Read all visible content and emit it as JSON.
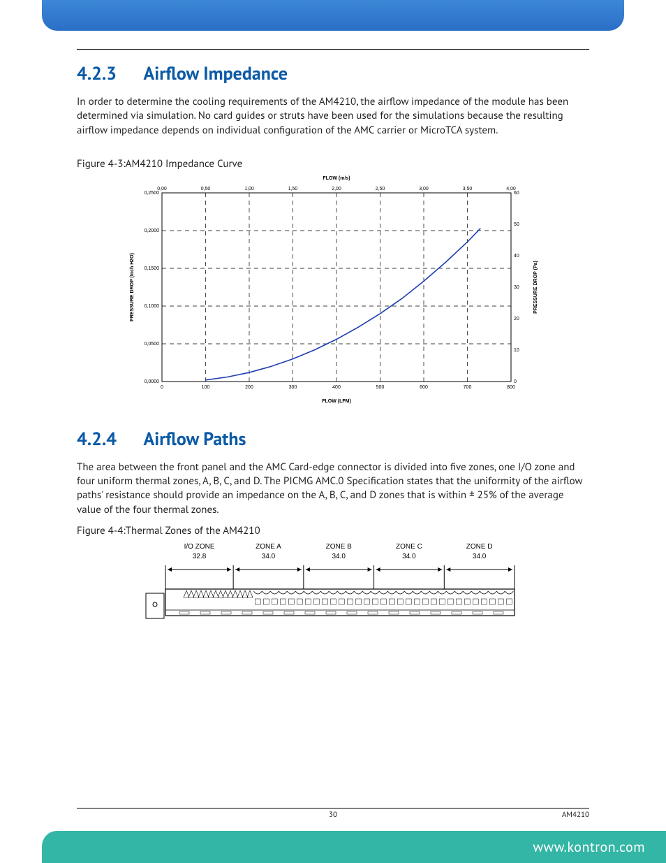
{
  "page": {
    "number": "30",
    "doc_id": "AM4210",
    "footer_url": "www.kontron.com"
  },
  "colors": {
    "topbar_from": "#3d87d6",
    "topbar_to": "#2a6fc7",
    "botbar": "#33b6a6",
    "heading": "#0b5aa6",
    "curve": "#1e3fb0",
    "grid": "#000000"
  },
  "sec1": {
    "num": "4.2.3",
    "title": "Airflow Impedance",
    "para": "In order to determine the cooling requirements of the AM4210, the airflow impedance of the module has been determined via simulation. No card guides or struts have been used for the simulations because the resulting airflow impedance depends on individual configuration of the AMC carrier or MicroTCA system."
  },
  "sec2": {
    "num": "4.2.4",
    "title": "Airflow Paths",
    "para": "The area between the front panel and the AMC Card-edge connector is divided into five zones, one I/O zone and four uniform thermal zones, A, B, C, and D. The PICMG AMC.0 Specification states that the uniformity of the airflow paths' resistance should provide an impedance on the A, B, C, and D zones that is within ± 25% of the average value of the four thermal zones."
  },
  "fig1": {
    "caption": "Figure 4-3:AM4210 Impedance Curve",
    "type": "line",
    "x_bottom": {
      "label": "FLOW (LFM)",
      "min": 0,
      "max": 800,
      "tick_step": 100,
      "ticks": [
        "0",
        "100",
        "200",
        "300",
        "400",
        "500",
        "600",
        "700",
        "800"
      ]
    },
    "x_top": {
      "label": "FLOW (m/s)",
      "min": 0,
      "max": 4,
      "ticks": [
        "0,00",
        "0,50",
        "1,00",
        "1,50",
        "2,00",
        "2,50",
        "3,00",
        "3,50",
        "4,00"
      ]
    },
    "y_left": {
      "label": "PRESSURE DROP (Inch H2O)",
      "min": 0,
      "max": 0.25,
      "tick_step": 0.05,
      "ticks": [
        "0,0000",
        "0,0500",
        "0,1000",
        "0,1500",
        "0,2000",
        "0,2500"
      ]
    },
    "y_right": {
      "label": "PRESSURE DROP (Pa)",
      "min": 0,
      "max": 60,
      "approx_ticks": [
        0,
        10,
        20,
        30,
        40,
        50,
        60
      ]
    },
    "curve_points_lfm_inch": [
      [
        100,
        0.002
      ],
      [
        150,
        0.006
      ],
      [
        200,
        0.012
      ],
      [
        250,
        0.02
      ],
      [
        300,
        0.03
      ],
      [
        350,
        0.042
      ],
      [
        400,
        0.056
      ],
      [
        450,
        0.072
      ],
      [
        500,
        0.09
      ],
      [
        550,
        0.11
      ],
      [
        600,
        0.133
      ],
      [
        650,
        0.158
      ],
      [
        700,
        0.185
      ],
      [
        730,
        0.203
      ]
    ],
    "line_color": "#1e3fb0",
    "line_width": 1.6,
    "grid_style": "dashed",
    "background": "#ffffff",
    "tick_fontsize": 7,
    "axis_label_fontsize": 7,
    "axis_label_weight": "bold"
  },
  "fig2": {
    "caption": "Figure 4-4:Thermal Zones of the AM4210",
    "type": "technical-diagram",
    "zones": [
      {
        "name": "I/O ZONE",
        "dim": "32.8"
      },
      {
        "name": "ZONE A",
        "dim": "34.0"
      },
      {
        "name": "ZONE B",
        "dim": "34.0"
      },
      {
        "name": "ZONE C",
        "dim": "34.0"
      },
      {
        "name": "ZONE D",
        "dim": "34.0"
      }
    ],
    "label_fontsize": 10,
    "stroke": "#000000"
  }
}
